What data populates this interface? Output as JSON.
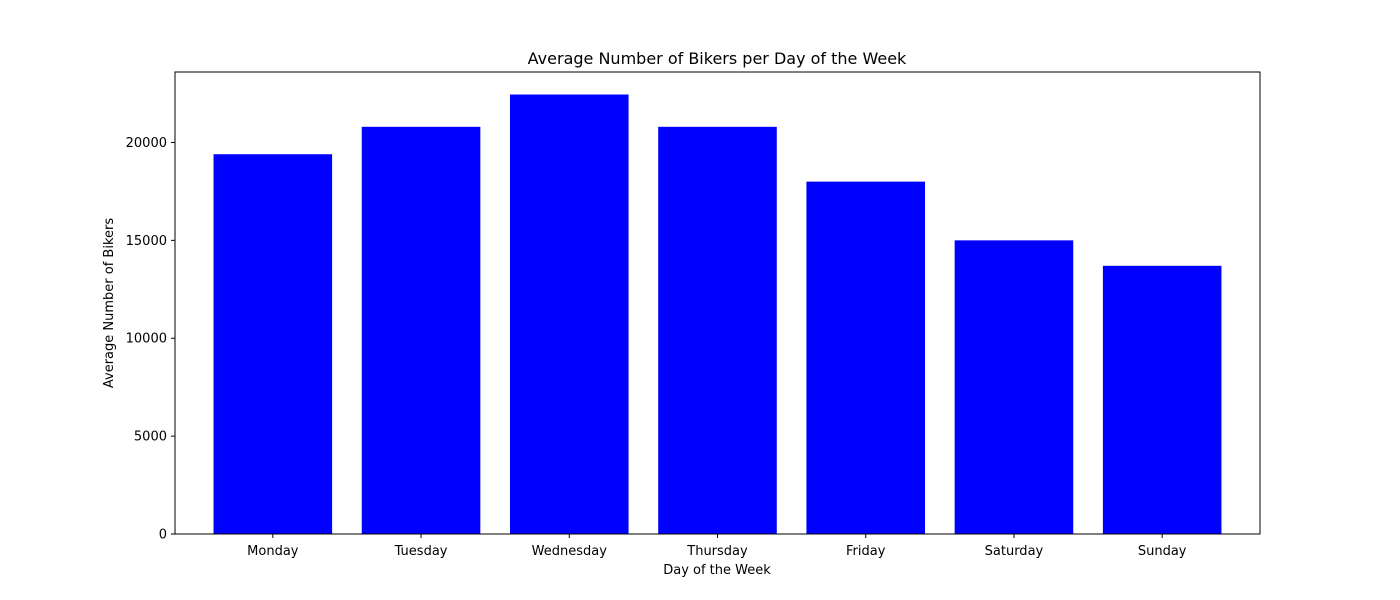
{
  "chart_data": {
    "type": "bar",
    "title": "Average Number of Bikers per Day of the Week",
    "xlabel": "Day of the Week",
    "ylabel": "Average Number of Bikers",
    "categories": [
      "Monday",
      "Tuesday",
      "Wednesday",
      "Thursday",
      "Friday",
      "Saturday",
      "Sunday"
    ],
    "values": [
      19400,
      20800,
      22450,
      20800,
      18000,
      15000,
      13700
    ],
    "ylim": [
      0,
      23600
    ],
    "yticks": [
      0,
      5000,
      10000,
      15000,
      20000
    ],
    "bar_color": "#0000ff",
    "grid": false,
    "legend": false
  }
}
